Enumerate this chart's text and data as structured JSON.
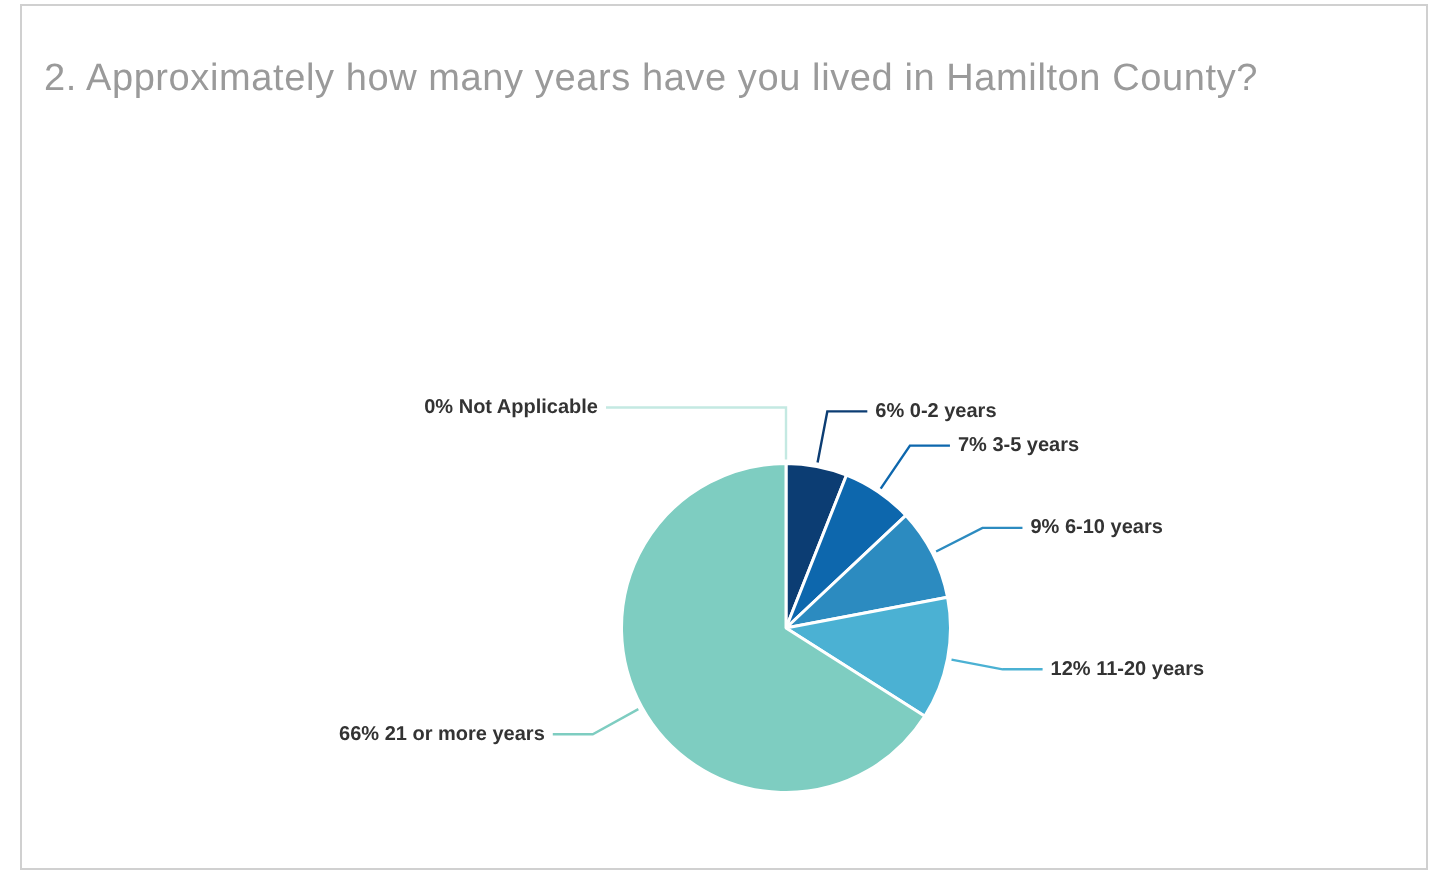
{
  "chart_data": {
    "type": "pie",
    "title": "2. Approximately how many years have you lived in Hamilton County?",
    "categories": [
      "0-2 years",
      "3-5 years",
      "6-10 years",
      "11-20 years",
      "21 or more years",
      "Not Applicable"
    ],
    "values": [
      6,
      7,
      9,
      12,
      66,
      0
    ],
    "value_labels": [
      "6%",
      "7%",
      "9%",
      "12%",
      "66%",
      "0%"
    ],
    "colors": [
      "#0c3d73",
      "#0d67ad",
      "#2c8bc0",
      "#4bb1d3",
      "#7ecdc1",
      "#c4e9e2"
    ],
    "legend": false
  }
}
